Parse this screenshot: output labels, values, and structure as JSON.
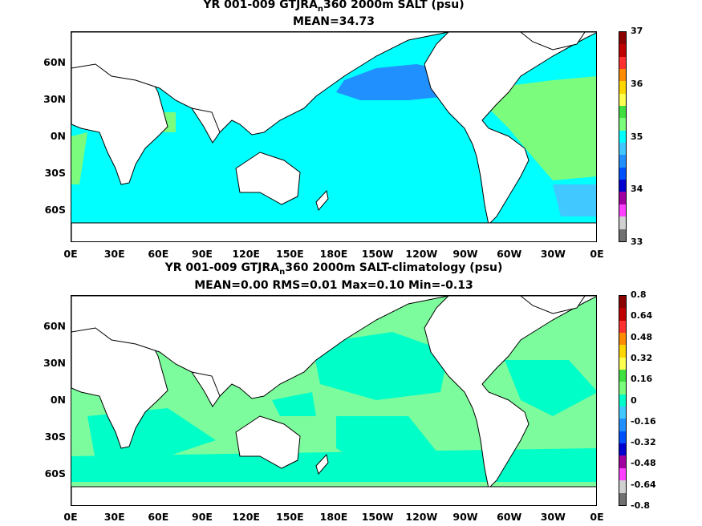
{
  "panel_top": {
    "title_prefix": "YR 001-009 GTJRA",
    "title_sub": "n",
    "title_suffix": "360 2000m SALT (psu)",
    "stats": "MEAN=34.73",
    "colorbar_labels": [
      "37",
      "36",
      "35",
      "34",
      "33"
    ],
    "colorbar_colors": [
      "#8b0000",
      "#c00000",
      "#ff3030",
      "#ff8c00",
      "#ffd700",
      "#ffff50",
      "#40e040",
      "#7cfc7c",
      "#00ffff",
      "#40c8ff",
      "#2090ff",
      "#0050ff",
      "#0000d0",
      "#a000a0",
      "#ff40ff",
      "#d0d0d0",
      "#707070"
    ],
    "ocean_color": "#00ffff"
  },
  "panel_bottom": {
    "title_prefix": "YR 001-009 GTJRA",
    "title_sub": "n",
    "title_suffix": "360 2000m SALT-climatology (psu)",
    "stats": "MEAN=0.00   RMS=0.01   Max=0.10   Min=-0.13",
    "colorbar_labels": [
      "0.8",
      "0.64",
      "0.48",
      "0.32",
      "0.16",
      "0",
      "-0.16",
      "-0.32",
      "-0.48",
      "-0.64",
      "-0.8"
    ],
    "colorbar_colors": [
      "#8b0000",
      "#c00000",
      "#ff3030",
      "#ff8c00",
      "#ffd700",
      "#ffff50",
      "#40e040",
      "#7cfc7c",
      "#00ffc8",
      "#40c8ff",
      "#2090ff",
      "#0050ff",
      "#0000d0",
      "#a000a0",
      "#ff40ff",
      "#d0d0d0",
      "#707070"
    ],
    "ocean_color": "#7cfc9c"
  },
  "axes": {
    "lat_ticks": [
      "60N",
      "30N",
      "0N",
      "30S",
      "60S"
    ],
    "lon_ticks": [
      "0E",
      "30E",
      "60E",
      "90E",
      "120E",
      "150E",
      "180E",
      "150W",
      "120W",
      "90W",
      "60W",
      "30W",
      "0E"
    ]
  }
}
